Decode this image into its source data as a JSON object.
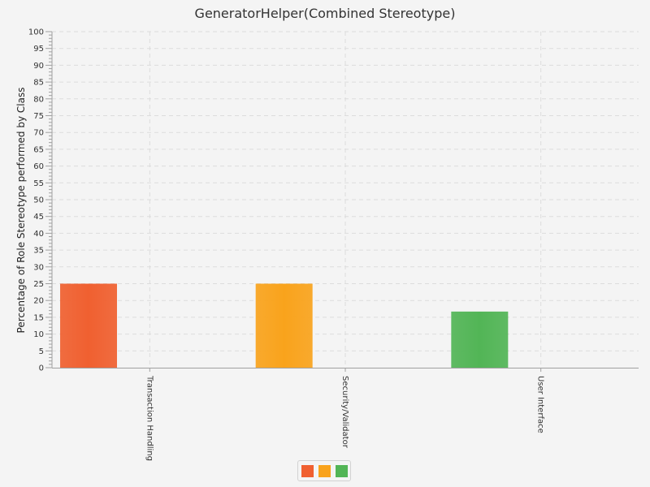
{
  "chart_data": {
    "type": "bar",
    "title": "GeneratorHelper(Combined Stereotype)",
    "xlabel": "",
    "ylabel": "Percentage of Role Stereotype performed by Class",
    "categories": [
      "Transaction Handling",
      "Security/Validator",
      "User Interface"
    ],
    "values": [
      25,
      25,
      16.7
    ],
    "colors": [
      "#f06030",
      "#f9a31c",
      "#52b556"
    ],
    "ylim": [
      0,
      100
    ],
    "ytick_step": 5,
    "grid": true,
    "legend": "bottom",
    "legend_entries": [
      "",
      "",
      ""
    ]
  }
}
